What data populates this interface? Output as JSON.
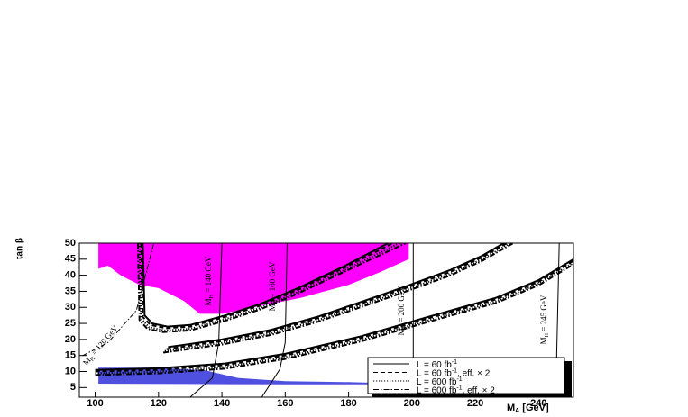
{
  "chart_data": {
    "type": "contour",
    "y_label": "tan β",
    "x_label": [
      "M",
      "A",
      " [GeV]"
    ],
    "xlim": [
      95,
      251
    ],
    "ylim": [
      2,
      50
    ],
    "xticks": [
      100,
      120,
      140,
      160,
      180,
      200,
      220,
      240
    ],
    "yticks": [
      5,
      10,
      15,
      20,
      25,
      30,
      35,
      40,
      45,
      50
    ],
    "regions": [
      {
        "color": "#ff00ff",
        "x": [
          101,
          101,
          104,
          108,
          114,
          120,
          128,
          133,
          140,
          150,
          165,
          180,
          190,
          199,
          199
        ],
        "y": [
          50,
          42,
          43,
          40,
          37,
          36,
          32,
          28,
          28,
          30,
          33,
          37,
          41,
          45,
          50
        ]
      },
      {
        "color": "#5050e0",
        "x": [
          101,
          120,
          135,
          145,
          160,
          180,
          190,
          190,
          160,
          130,
          101
        ],
        "y": [
          11.2,
          11.2,
          10.3,
          8,
          7,
          6.7,
          6.4,
          6,
          6,
          6.1,
          6.2
        ]
      }
    ],
    "series": [
      {
        "name": [
          "L = 60 fb",
          "-1",
          ""
        ],
        "style": "solid",
        "color": "#000000",
        "x": [
          115,
          115.6,
          118,
          122.8,
          130,
          141,
          152,
          164,
          178,
          192.5,
          null,
          123,
          140,
          155.5,
          170,
          184,
          198,
          212,
          222,
          229,
          null,
          100,
          120,
          141,
          160,
          184,
          205,
          226.6,
          240,
          251
        ],
        "y": [
          50,
          27.5,
          25,
          24,
          24.5,
          27.5,
          31,
          36,
          42.5,
          50,
          null,
          17.6,
          20,
          23,
          27,
          31.7,
          36.5,
          41.6,
          46,
          50,
          null,
          10.5,
          11,
          12.5,
          15.5,
          21,
          27,
          33,
          38.5,
          45
        ]
      },
      {
        "name": [
          "L = 60 fb",
          "-1",
          ", eff. × 2"
        ],
        "style": "dashed",
        "color": "#000000",
        "x": [
          114.5,
          115,
          117.5,
          122.5,
          130,
          141,
          152,
          164,
          178,
          194,
          null,
          122.5,
          140,
          155.5,
          170,
          184,
          198,
          212,
          222,
          230,
          null,
          100,
          120,
          141,
          160,
          184,
          205,
          226.6,
          240,
          251
        ],
        "y": [
          50,
          27,
          24.5,
          23.5,
          24,
          27,
          30.5,
          35.5,
          42,
          50,
          null,
          17,
          19.5,
          22.5,
          26.5,
          31.2,
          36,
          41,
          45.5,
          50,
          null,
          10,
          10.5,
          12,
          15,
          20.5,
          26.5,
          32.5,
          38,
          44.5
        ]
      },
      {
        "name": [
          "L = 600 fb",
          "-1",
          ""
        ],
        "style": "dotted",
        "color": "#000000",
        "x": [
          114,
          114.5,
          117,
          122,
          130,
          141,
          152,
          164,
          178,
          196,
          null,
          122,
          140,
          155.5,
          170,
          184,
          198,
          212,
          222,
          231,
          null,
          100,
          120,
          141,
          160,
          184,
          205,
          226.6,
          240,
          251
        ],
        "y": [
          50,
          26.5,
          23.8,
          22.8,
          23.3,
          26.3,
          29.8,
          34.8,
          41.3,
          50,
          null,
          16.4,
          18.9,
          21.9,
          25.9,
          30.6,
          35.4,
          40.4,
          44.9,
          50,
          null,
          9.4,
          9.9,
          11.4,
          14.4,
          19.9,
          25.9,
          31.9,
          37.4,
          43.9
        ]
      },
      {
        "name": [
          "L = 600 fb",
          "-1",
          ", eff. × 2"
        ],
        "style": "dashdot",
        "color": "#000000",
        "x": [
          113.5,
          114,
          116.5,
          121.5,
          130,
          141,
          152,
          164,
          178,
          198,
          null,
          121.5,
          140,
          155.5,
          170,
          184,
          198,
          212,
          222,
          232,
          null,
          100,
          120,
          141,
          160,
          184,
          205,
          226.6,
          240,
          251
        ],
        "y": [
          50,
          26,
          23.3,
          22.3,
          22.8,
          25.8,
          29.3,
          34.3,
          40.8,
          50,
          null,
          15.9,
          18.4,
          21.4,
          25.4,
          30.1,
          34.9,
          39.9,
          44.4,
          50,
          null,
          8.9,
          9.4,
          10.9,
          13.9,
          19.4,
          25.4,
          31.4,
          36.9,
          43.4
        ]
      }
    ],
    "isomass": [
      {
        "label": [
          "M",
          "H",
          " = 120 GeV"
        ],
        "x": [
          96,
          104,
          113,
          118.5
        ],
        "y": [
          14.9,
          19,
          29,
          50
        ]
      },
      {
        "label": [
          "M",
          "H",
          " = 140 GeV"
        ],
        "x": [
          130,
          137,
          139,
          140
        ],
        "y": [
          2,
          8,
          19,
          50
        ]
      },
      {
        "label": [
          "M",
          "H",
          " = 160 GeV"
        ],
        "x": [
          152.6,
          158.3,
          160,
          160.6
        ],
        "y": [
          2,
          10.7,
          19,
          50
        ]
      },
      {
        "label": [
          "M",
          "H",
          " = 200 GeV"
        ],
        "x": [
          199.6,
          200.4,
          200.4
        ],
        "y": [
          2,
          13.4,
          50
        ]
      },
      {
        "label": [
          "M",
          "H",
          " = 245 GeV"
        ],
        "x": [
          245.4,
          246.5
        ],
        "y": [
          2,
          50
        ]
      }
    ]
  }
}
